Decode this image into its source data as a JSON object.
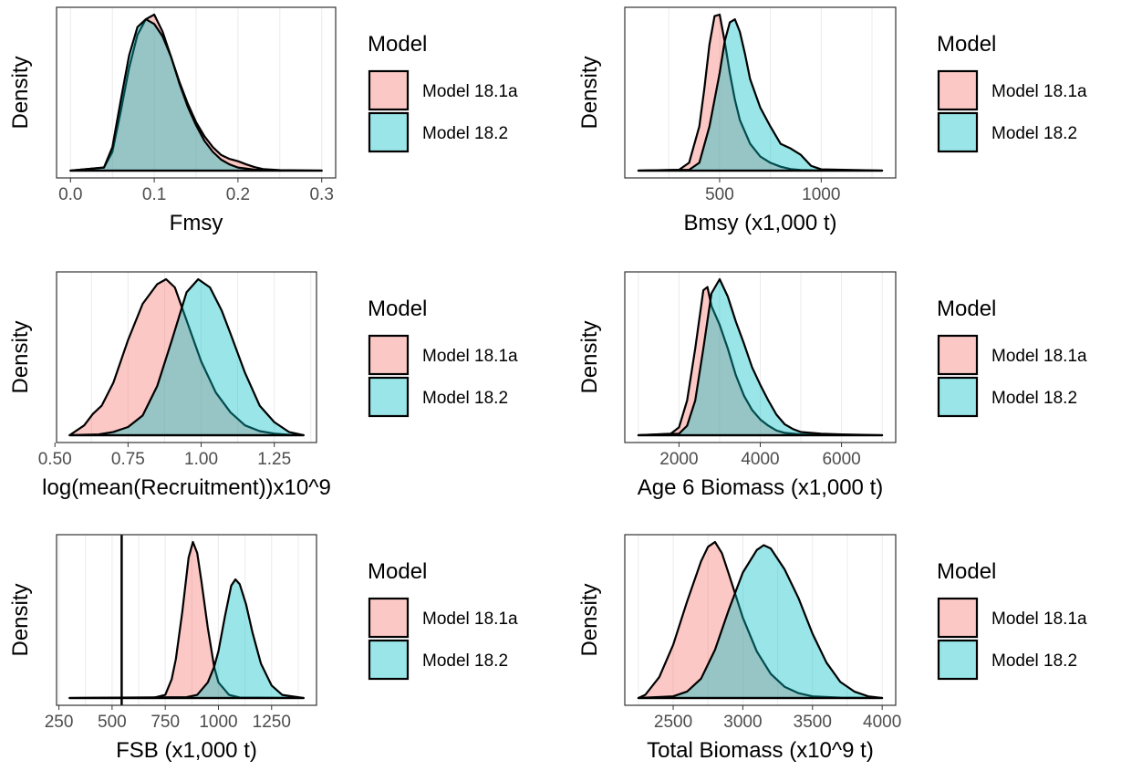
{
  "legend": {
    "title": "Model",
    "items": [
      {
        "label": "Model 18.1a",
        "fill": "#F8766D"
      },
      {
        "label": "Model 18.2",
        "fill": "#00BFC4"
      }
    ]
  },
  "colors": {
    "model_18_1a": "#F8766D",
    "model_18_2": "#00BFC4",
    "grid": "#ebebeb",
    "panel_border": "#333333",
    "axis_text": "#4d4d4d"
  },
  "chart_data": [
    {
      "type": "area",
      "xlabel": "Fmsy",
      "ylabel": "Density",
      "xlim": [
        0.0,
        0.3
      ],
      "xticks": [
        0.0,
        0.1,
        0.2,
        0.3
      ],
      "xtick_labels": [
        "0.0",
        "0.1",
        "0.2",
        "0.3"
      ],
      "vline": null,
      "series": [
        {
          "name": "Model 18.1a",
          "x": [
            0,
            0.04,
            0.05,
            0.06,
            0.07,
            0.08,
            0.09,
            0.1,
            0.11,
            0.12,
            0.13,
            0.14,
            0.15,
            0.16,
            0.17,
            0.18,
            0.19,
            0.2,
            0.21,
            0.22,
            0.23,
            0.25,
            0.3
          ],
          "y": [
            0,
            0.02,
            0.12,
            0.38,
            0.66,
            0.87,
            0.97,
            1.0,
            0.89,
            0.73,
            0.57,
            0.43,
            0.31,
            0.22,
            0.15,
            0.1,
            0.075,
            0.06,
            0.04,
            0.022,
            0.01,
            0.003,
            0
          ]
        },
        {
          "name": "Model 18.2",
          "x": [
            0,
            0.04,
            0.05,
            0.06,
            0.07,
            0.08,
            0.09,
            0.1,
            0.11,
            0.12,
            0.13,
            0.14,
            0.15,
            0.16,
            0.17,
            0.18,
            0.19,
            0.2,
            0.22,
            0.25,
            0.3
          ],
          "y": [
            0,
            0.02,
            0.15,
            0.45,
            0.74,
            0.92,
            0.97,
            0.94,
            0.86,
            0.73,
            0.56,
            0.41,
            0.29,
            0.19,
            0.12,
            0.07,
            0.04,
            0.02,
            0.006,
            0.001,
            0
          ]
        }
      ]
    },
    {
      "type": "area",
      "xlabel": "Bmsy (x1,000 t)",
      "ylabel": "Density",
      "xlim": [
        100,
        1300
      ],
      "xticks": [
        500,
        1000
      ],
      "xtick_labels": [
        "500",
        "1000"
      ],
      "vline": null,
      "series": [
        {
          "name": "Model 18.1a",
          "x": [
            100,
            300,
            350,
            400,
            425,
            450,
            475,
            500,
            525,
            550,
            575,
            600,
            650,
            700,
            750,
            800,
            850,
            900,
            1000,
            1300
          ],
          "y": [
            0,
            0.005,
            0.05,
            0.28,
            0.52,
            0.8,
            0.98,
            0.99,
            0.82,
            0.62,
            0.45,
            0.32,
            0.17,
            0.09,
            0.05,
            0.025,
            0.01,
            0.004,
            0.001,
            0
          ]
        },
        {
          "name": "Model 18.2",
          "x": [
            100,
            350,
            400,
            450,
            500,
            525,
            550,
            575,
            600,
            625,
            650,
            700,
            750,
            800,
            850,
            900,
            950,
            1000,
            1300
          ],
          "y": [
            0,
            0.005,
            0.05,
            0.28,
            0.62,
            0.82,
            0.94,
            0.96,
            0.88,
            0.74,
            0.58,
            0.4,
            0.28,
            0.17,
            0.14,
            0.1,
            0.03,
            0.008,
            0
          ]
        }
      ]
    },
    {
      "type": "area",
      "xlabel": "log(mean(Recruitment))x10^9",
      "ylabel": "Density",
      "xlim": [
        0.55,
        1.35
      ],
      "xticks": [
        0.5,
        0.75,
        1.0,
        1.25
      ],
      "xtick_labels": [
        "0.50",
        "0.75",
        "1.00",
        "1.25"
      ],
      "vline": null,
      "series": [
        {
          "name": "Model 18.1a",
          "x": [
            0.55,
            0.6,
            0.63,
            0.66,
            0.7,
            0.75,
            0.8,
            0.85,
            0.88,
            0.91,
            0.95,
            1.0,
            1.05,
            1.1,
            1.15,
            1.2,
            1.25,
            1.3,
            1.35
          ],
          "y": [
            0,
            0.06,
            0.13,
            0.18,
            0.32,
            0.58,
            0.8,
            0.92,
            0.95,
            0.9,
            0.7,
            0.45,
            0.26,
            0.14,
            0.06,
            0.025,
            0.01,
            0.003,
            0
          ]
        },
        {
          "name": "Model 18.2",
          "x": [
            0.55,
            0.65,
            0.7,
            0.75,
            0.8,
            0.85,
            0.9,
            0.95,
            0.99,
            1.03,
            1.07,
            1.1,
            1.15,
            1.2,
            1.25,
            1.3,
            1.35
          ],
          "y": [
            0,
            0.005,
            0.02,
            0.05,
            0.12,
            0.3,
            0.58,
            0.87,
            0.95,
            0.9,
            0.76,
            0.62,
            0.38,
            0.18,
            0.08,
            0.02,
            0
          ]
        }
      ]
    },
    {
      "type": "area",
      "xlabel": "Age 6 Biomass (x1,000 t)",
      "ylabel": "Density",
      "xlim": [
        1000,
        7000
      ],
      "xticks": [
        2000,
        4000,
        6000
      ],
      "xtick_labels": [
        "2000",
        "4000",
        "6000"
      ],
      "vline": null,
      "series": [
        {
          "name": "Model 18.1a",
          "x": [
            1000,
            1800,
            2000,
            2200,
            2400,
            2600,
            2700,
            2800,
            3000,
            3200,
            3400,
            3600,
            3800,
            4000,
            4200,
            4400,
            4600,
            5000,
            5500,
            7000
          ],
          "y": [
            0,
            0.01,
            0.05,
            0.22,
            0.55,
            0.92,
            0.94,
            0.82,
            0.7,
            0.55,
            0.38,
            0.25,
            0.16,
            0.1,
            0.06,
            0.03,
            0.015,
            0.005,
            0.002,
            0
          ]
        },
        {
          "name": "Model 18.2",
          "x": [
            1000,
            2000,
            2200,
            2400,
            2600,
            2800,
            3000,
            3200,
            3400,
            3600,
            3800,
            4000,
            4200,
            4400,
            4600,
            4800,
            5000,
            5500,
            6000,
            7000
          ],
          "y": [
            0,
            0.01,
            0.06,
            0.22,
            0.55,
            0.9,
            0.99,
            0.88,
            0.72,
            0.58,
            0.43,
            0.32,
            0.22,
            0.13,
            0.07,
            0.04,
            0.02,
            0.01,
            0.005,
            0
          ]
        }
      ]
    },
    {
      "type": "area",
      "xlabel": "FSB (x1,000 t)",
      "ylabel": "Density",
      "xlim": [
        300,
        1400
      ],
      "xticks": [
        250,
        500,
        750,
        1000,
        1250
      ],
      "xtick_labels": [
        "250",
        "500",
        "750",
        "1000",
        "1250"
      ],
      "vline": 545,
      "series": [
        {
          "name": "Model 18.1a",
          "x": [
            300,
            700,
            750,
            780,
            800,
            830,
            860,
            880,
            900,
            920,
            950,
            980,
            1000,
            1050,
            1100,
            1400
          ],
          "y": [
            0,
            0.003,
            0.02,
            0.12,
            0.25,
            0.55,
            0.9,
            1.0,
            0.93,
            0.75,
            0.45,
            0.2,
            0.1,
            0.02,
            0.003,
            0
          ]
        },
        {
          "name": "Model 18.2",
          "x": [
            300,
            850,
            900,
            950,
            980,
            1000,
            1030,
            1060,
            1080,
            1100,
            1130,
            1160,
            1200,
            1250,
            1300,
            1400
          ],
          "y": [
            0,
            0.005,
            0.02,
            0.1,
            0.2,
            0.3,
            0.52,
            0.72,
            0.76,
            0.73,
            0.6,
            0.42,
            0.22,
            0.08,
            0.02,
            0
          ]
        }
      ]
    },
    {
      "type": "area",
      "xlabel": "Total Biomass (x10^9 t)",
      "ylabel": "Density",
      "xlim": [
        2250,
        4000
      ],
      "xticks": [
        2500,
        3000,
        3500,
        4000
      ],
      "xtick_labels": [
        "2500",
        "3000",
        "3500",
        "4000"
      ],
      "vline": null,
      "series": [
        {
          "name": "Model 18.1a",
          "x": [
            2250,
            2300,
            2400,
            2500,
            2600,
            2700,
            2750,
            2800,
            2850,
            2900,
            3000,
            3100,
            3200,
            3300,
            3400,
            3500,
            3700,
            4000
          ],
          "y": [
            0,
            0.02,
            0.13,
            0.33,
            0.6,
            0.85,
            0.94,
            0.97,
            0.9,
            0.77,
            0.5,
            0.29,
            0.15,
            0.07,
            0.03,
            0.01,
            0.002,
            0
          ]
        },
        {
          "name": "Model 18.2",
          "x": [
            2250,
            2500,
            2600,
            2700,
            2800,
            2900,
            3000,
            3100,
            3150,
            3200,
            3300,
            3400,
            3500,
            3600,
            3700,
            3800,
            3900,
            4000
          ],
          "y": [
            0,
            0.01,
            0.04,
            0.12,
            0.3,
            0.55,
            0.78,
            0.92,
            0.95,
            0.93,
            0.8,
            0.62,
            0.4,
            0.22,
            0.1,
            0.04,
            0.01,
            0
          ]
        }
      ]
    }
  ]
}
